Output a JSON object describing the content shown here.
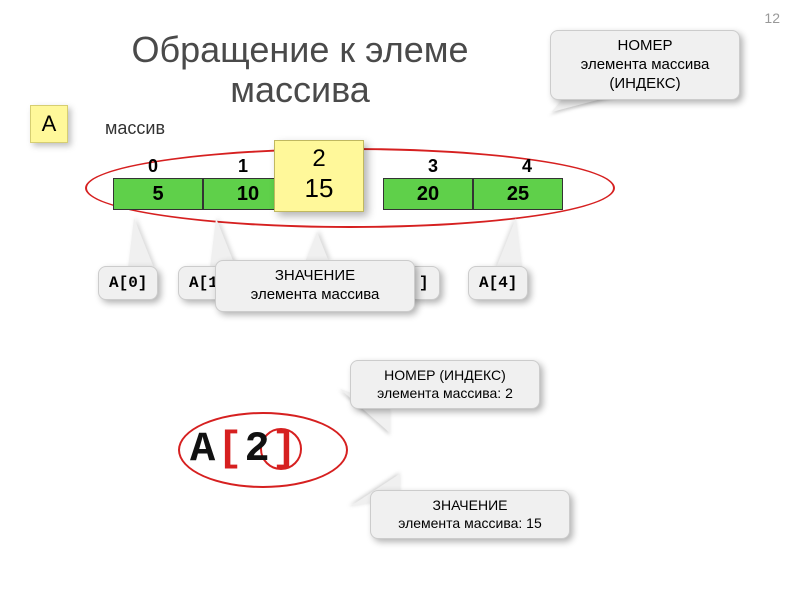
{
  "page_number": "12",
  "title": "Обращение к элеме\nмассива",
  "array_name": "A",
  "array_label": "массив",
  "indices": {
    "i0": "0",
    "i1": "1",
    "i3": "3",
    "i4": "4"
  },
  "values": {
    "v0": "5",
    "v1": "10",
    "v3": "20",
    "v4": "25"
  },
  "highlight": {
    "index": "2",
    "value": "15"
  },
  "callouts": {
    "nomer": "НОМЕР\nэлемента массива\n(ИНДЕКС)",
    "znachenie": "ЗНАЧЕНИЕ\nэлемента массива",
    "a0": "A[0]",
    "a1": "A[1]",
    "a3_bracket": "]",
    "a4": "A[4]",
    "idx_of_2": "НОМЕР (ИНДЕКС)\nэлемента массива: 2",
    "val_of_2": "ЗНАЧЕНИЕ\nэлемента массива: 15"
  },
  "notation": {
    "name": "A",
    "open": "[",
    "idx": "2",
    "close": "]"
  },
  "colors": {
    "cell_bg": "#5fd04a",
    "highlight_bg": "#fff89a",
    "callout_bg": "#f0f0f0",
    "red": "#d62020",
    "title_color": "#4a4a4a",
    "page_bg": "#ffffff"
  }
}
